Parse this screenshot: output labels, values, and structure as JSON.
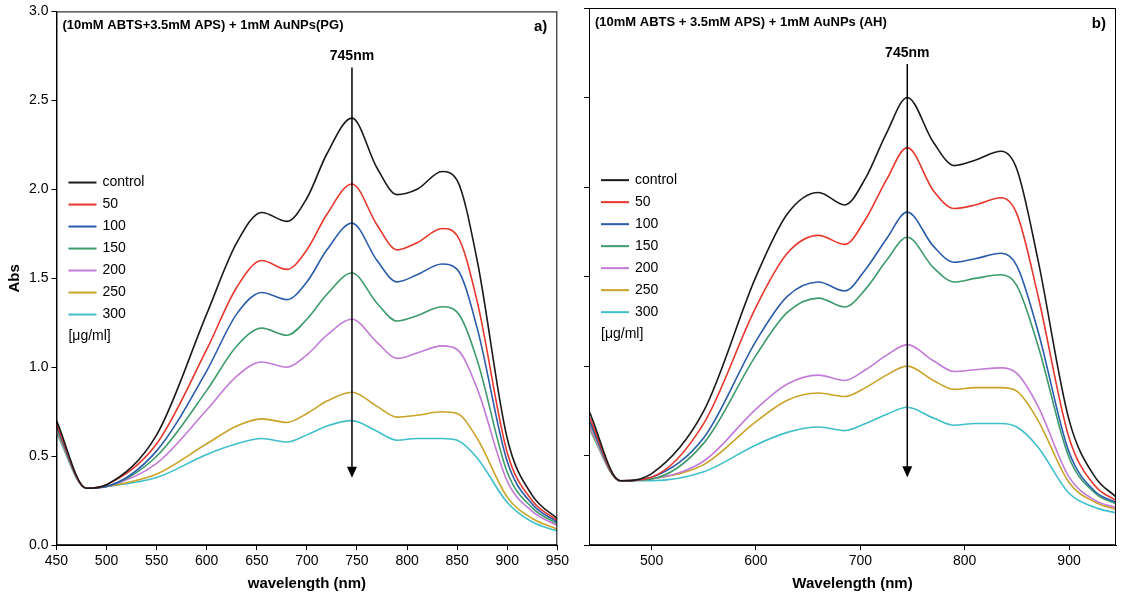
{
  "chart_data": [
    {
      "type": "line",
      "title": "(10mM ABTS+3.5mM APS) + 1mM AuNPs(PG)",
      "panel_label": "a)",
      "x_label": "wavelength (nm)",
      "y_label": "Abs",
      "annotations": [
        {
          "text": "745nm",
          "x": 745
        }
      ],
      "legend_title": "[μg/ml]",
      "legend": "upper left",
      "grid": false,
      "xlim": [
        450,
        950
      ],
      "xticks": [
        450,
        500,
        550,
        600,
        650,
        700,
        750,
        800,
        850,
        900,
        950
      ],
      "ylim": [
        0,
        3
      ],
      "yticks": [
        {
          "value": 0,
          "label": "0.0"
        },
        0.5,
        {
          "value": 1,
          "label": "1.0"
        },
        1.5,
        {
          "value": 2,
          "label": "2.0"
        },
        2.5,
        {
          "value": 3,
          "label": "3.0"
        }
      ],
      "x": [
        450,
        480,
        500,
        550,
        600,
        630,
        655,
        680,
        700,
        720,
        745,
        770,
        790,
        810,
        835,
        850,
        870,
        900,
        925,
        950
      ],
      "series": [
        {
          "name": "control",
          "color": "#1a1a1a",
          "values": [
            0.7,
            0.32,
            0.34,
            0.62,
            1.3,
            1.7,
            1.87,
            1.82,
            1.95,
            2.2,
            2.4,
            2.12,
            1.97,
            2.0,
            2.1,
            2.05,
            1.6,
            0.6,
            0.28,
            0.15
          ]
        },
        {
          "name": "50",
          "color": "#e8372c",
          "values": [
            0.68,
            0.32,
            0.34,
            0.57,
            1.1,
            1.45,
            1.6,
            1.55,
            1.66,
            1.86,
            2.03,
            1.8,
            1.66,
            1.7,
            1.78,
            1.74,
            1.37,
            0.52,
            0.25,
            0.14
          ]
        },
        {
          "name": "100",
          "color": "#2a5caa",
          "values": [
            0.67,
            0.32,
            0.33,
            0.53,
            0.98,
            1.3,
            1.42,
            1.38,
            1.48,
            1.66,
            1.81,
            1.6,
            1.48,
            1.52,
            1.58,
            1.55,
            1.22,
            0.47,
            0.23,
            0.13
          ]
        },
        {
          "name": "150",
          "color": "#3d9b6b",
          "values": [
            0.66,
            0.32,
            0.33,
            0.5,
            0.87,
            1.12,
            1.22,
            1.18,
            1.27,
            1.41,
            1.53,
            1.36,
            1.26,
            1.29,
            1.34,
            1.31,
            1.04,
            0.41,
            0.21,
            0.12
          ]
        },
        {
          "name": "200",
          "color": "#c27bd6",
          "values": [
            0.65,
            0.32,
            0.33,
            0.46,
            0.76,
            0.95,
            1.03,
            1.0,
            1.07,
            1.18,
            1.27,
            1.14,
            1.05,
            1.08,
            1.12,
            1.1,
            0.88,
            0.36,
            0.19,
            0.11
          ]
        },
        {
          "name": "250",
          "color": "#c9a227",
          "values": [
            0.64,
            0.32,
            0.33,
            0.4,
            0.57,
            0.67,
            0.71,
            0.69,
            0.74,
            0.81,
            0.86,
            0.78,
            0.72,
            0.73,
            0.75,
            0.74,
            0.6,
            0.27,
            0.15,
            0.09
          ]
        },
        {
          "name": "300",
          "color": "#3fbfc9",
          "values": [
            0.63,
            0.32,
            0.33,
            0.38,
            0.51,
            0.57,
            0.6,
            0.58,
            0.62,
            0.67,
            0.7,
            0.64,
            0.59,
            0.6,
            0.6,
            0.59,
            0.49,
            0.24,
            0.13,
            0.08
          ]
        }
      ]
    },
    {
      "type": "line",
      "title": "(10mM ABTS + 3.5mM APS) + 1mM AuNPs (AH)",
      "panel_label": "b)",
      "x_label": "Wavelength (nm)",
      "annotations": [
        {
          "text": "745nm",
          "x": 745
        }
      ],
      "legend_title": "[μg/ml]",
      "legend": "upper left",
      "grid": false,
      "tick_labels": "x",
      "xlim": [
        440,
        945
      ],
      "xticks": [
        500,
        600,
        700,
        800,
        900
      ],
      "ylim": [
        0,
        3
      ],
      "yticks": [
        0,
        0.5,
        1,
        1.5,
        2,
        2.5,
        3
      ],
      "x": [
        440,
        470,
        500,
        550,
        600,
        630,
        660,
        685,
        705,
        725,
        745,
        770,
        790,
        810,
        835,
        850,
        870,
        900,
        925,
        945
      ],
      "series": [
        {
          "name": "control",
          "color": "#1a1a1a",
          "values": [
            0.75,
            0.36,
            0.4,
            0.75,
            1.5,
            1.85,
            1.97,
            1.9,
            2.05,
            2.3,
            2.5,
            2.25,
            2.12,
            2.15,
            2.2,
            2.1,
            1.6,
            0.7,
            0.38,
            0.27
          ]
        },
        {
          "name": "50",
          "color": "#e8372c",
          "values": [
            0.72,
            0.36,
            0.38,
            0.68,
            1.33,
            1.63,
            1.73,
            1.68,
            1.82,
            2.04,
            2.22,
            1.98,
            1.88,
            1.9,
            1.94,
            1.85,
            1.4,
            0.6,
            0.33,
            0.25
          ]
        },
        {
          "name": "100",
          "color": "#2a5caa",
          "values": [
            0.7,
            0.36,
            0.38,
            0.6,
            1.14,
            1.39,
            1.47,
            1.42,
            1.54,
            1.71,
            1.86,
            1.67,
            1.58,
            1.6,
            1.63,
            1.56,
            1.2,
            0.52,
            0.3,
            0.24
          ]
        },
        {
          "name": "150",
          "color": "#3d9b6b",
          "values": [
            0.69,
            0.36,
            0.37,
            0.57,
            1.06,
            1.3,
            1.38,
            1.33,
            1.43,
            1.59,
            1.72,
            1.55,
            1.47,
            1.49,
            1.51,
            1.45,
            1.12,
            0.49,
            0.29,
            0.23
          ]
        },
        {
          "name": "200",
          "color": "#c27bd6",
          "values": [
            0.67,
            0.36,
            0.37,
            0.47,
            0.76,
            0.9,
            0.95,
            0.92,
            0.98,
            1.06,
            1.12,
            1.03,
            0.97,
            0.98,
            0.99,
            0.96,
            0.78,
            0.38,
            0.25,
            0.21
          ]
        },
        {
          "name": "250",
          "color": "#c9a227",
          "values": [
            0.66,
            0.36,
            0.37,
            0.45,
            0.69,
            0.81,
            0.85,
            0.83,
            0.88,
            0.95,
            1.0,
            0.92,
            0.87,
            0.88,
            0.88,
            0.86,
            0.7,
            0.35,
            0.24,
            0.2
          ]
        },
        {
          "name": "300",
          "color": "#3fbfc9",
          "values": [
            0.65,
            0.36,
            0.36,
            0.41,
            0.56,
            0.63,
            0.66,
            0.64,
            0.68,
            0.73,
            0.77,
            0.71,
            0.67,
            0.68,
            0.68,
            0.66,
            0.55,
            0.29,
            0.21,
            0.18
          ]
        }
      ]
    }
  ]
}
